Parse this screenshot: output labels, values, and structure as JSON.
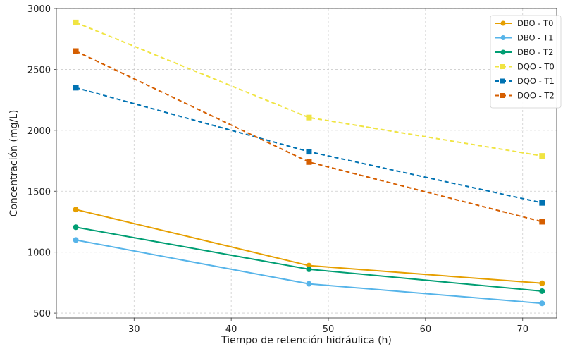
{
  "chart_data": {
    "type": "line",
    "title": "",
    "xlabel": "Tiempo de retención hidráulica (h)",
    "ylabel": "Concentración (mg/L)",
    "x": [
      24,
      48,
      72
    ],
    "xlim": [
      22,
      73.5
    ],
    "ylim": [
      460,
      3000
    ],
    "xticks": [
      30,
      40,
      50,
      60,
      70
    ],
    "yticks": [
      500,
      1000,
      1500,
      2000,
      2500,
      3000
    ],
    "grid": true,
    "legend_position": "top-right",
    "series": [
      {
        "name": "DBO - T0",
        "values": [
          1350,
          890,
          745
        ],
        "color": "#E69F00",
        "marker": "circle",
        "dashed": false
      },
      {
        "name": "DBO - T1",
        "values": [
          1100,
          740,
          580
        ],
        "color": "#56B4E9",
        "marker": "circle",
        "dashed": false
      },
      {
        "name": "DBO - T2",
        "values": [
          1205,
          860,
          680
        ],
        "color": "#009E73",
        "marker": "circle",
        "dashed": false
      },
      {
        "name": "DQO - T0",
        "values": [
          2885,
          2105,
          1790
        ],
        "color": "#F0E442",
        "marker": "square",
        "dashed": true
      },
      {
        "name": "DQO - T1",
        "values": [
          2350,
          1825,
          1405
        ],
        "color": "#0072B2",
        "marker": "square",
        "dashed": true
      },
      {
        "name": "DQO - T2",
        "values": [
          2650,
          1740,
          1250
        ],
        "color": "#D55E00",
        "marker": "square",
        "dashed": true
      }
    ]
  }
}
